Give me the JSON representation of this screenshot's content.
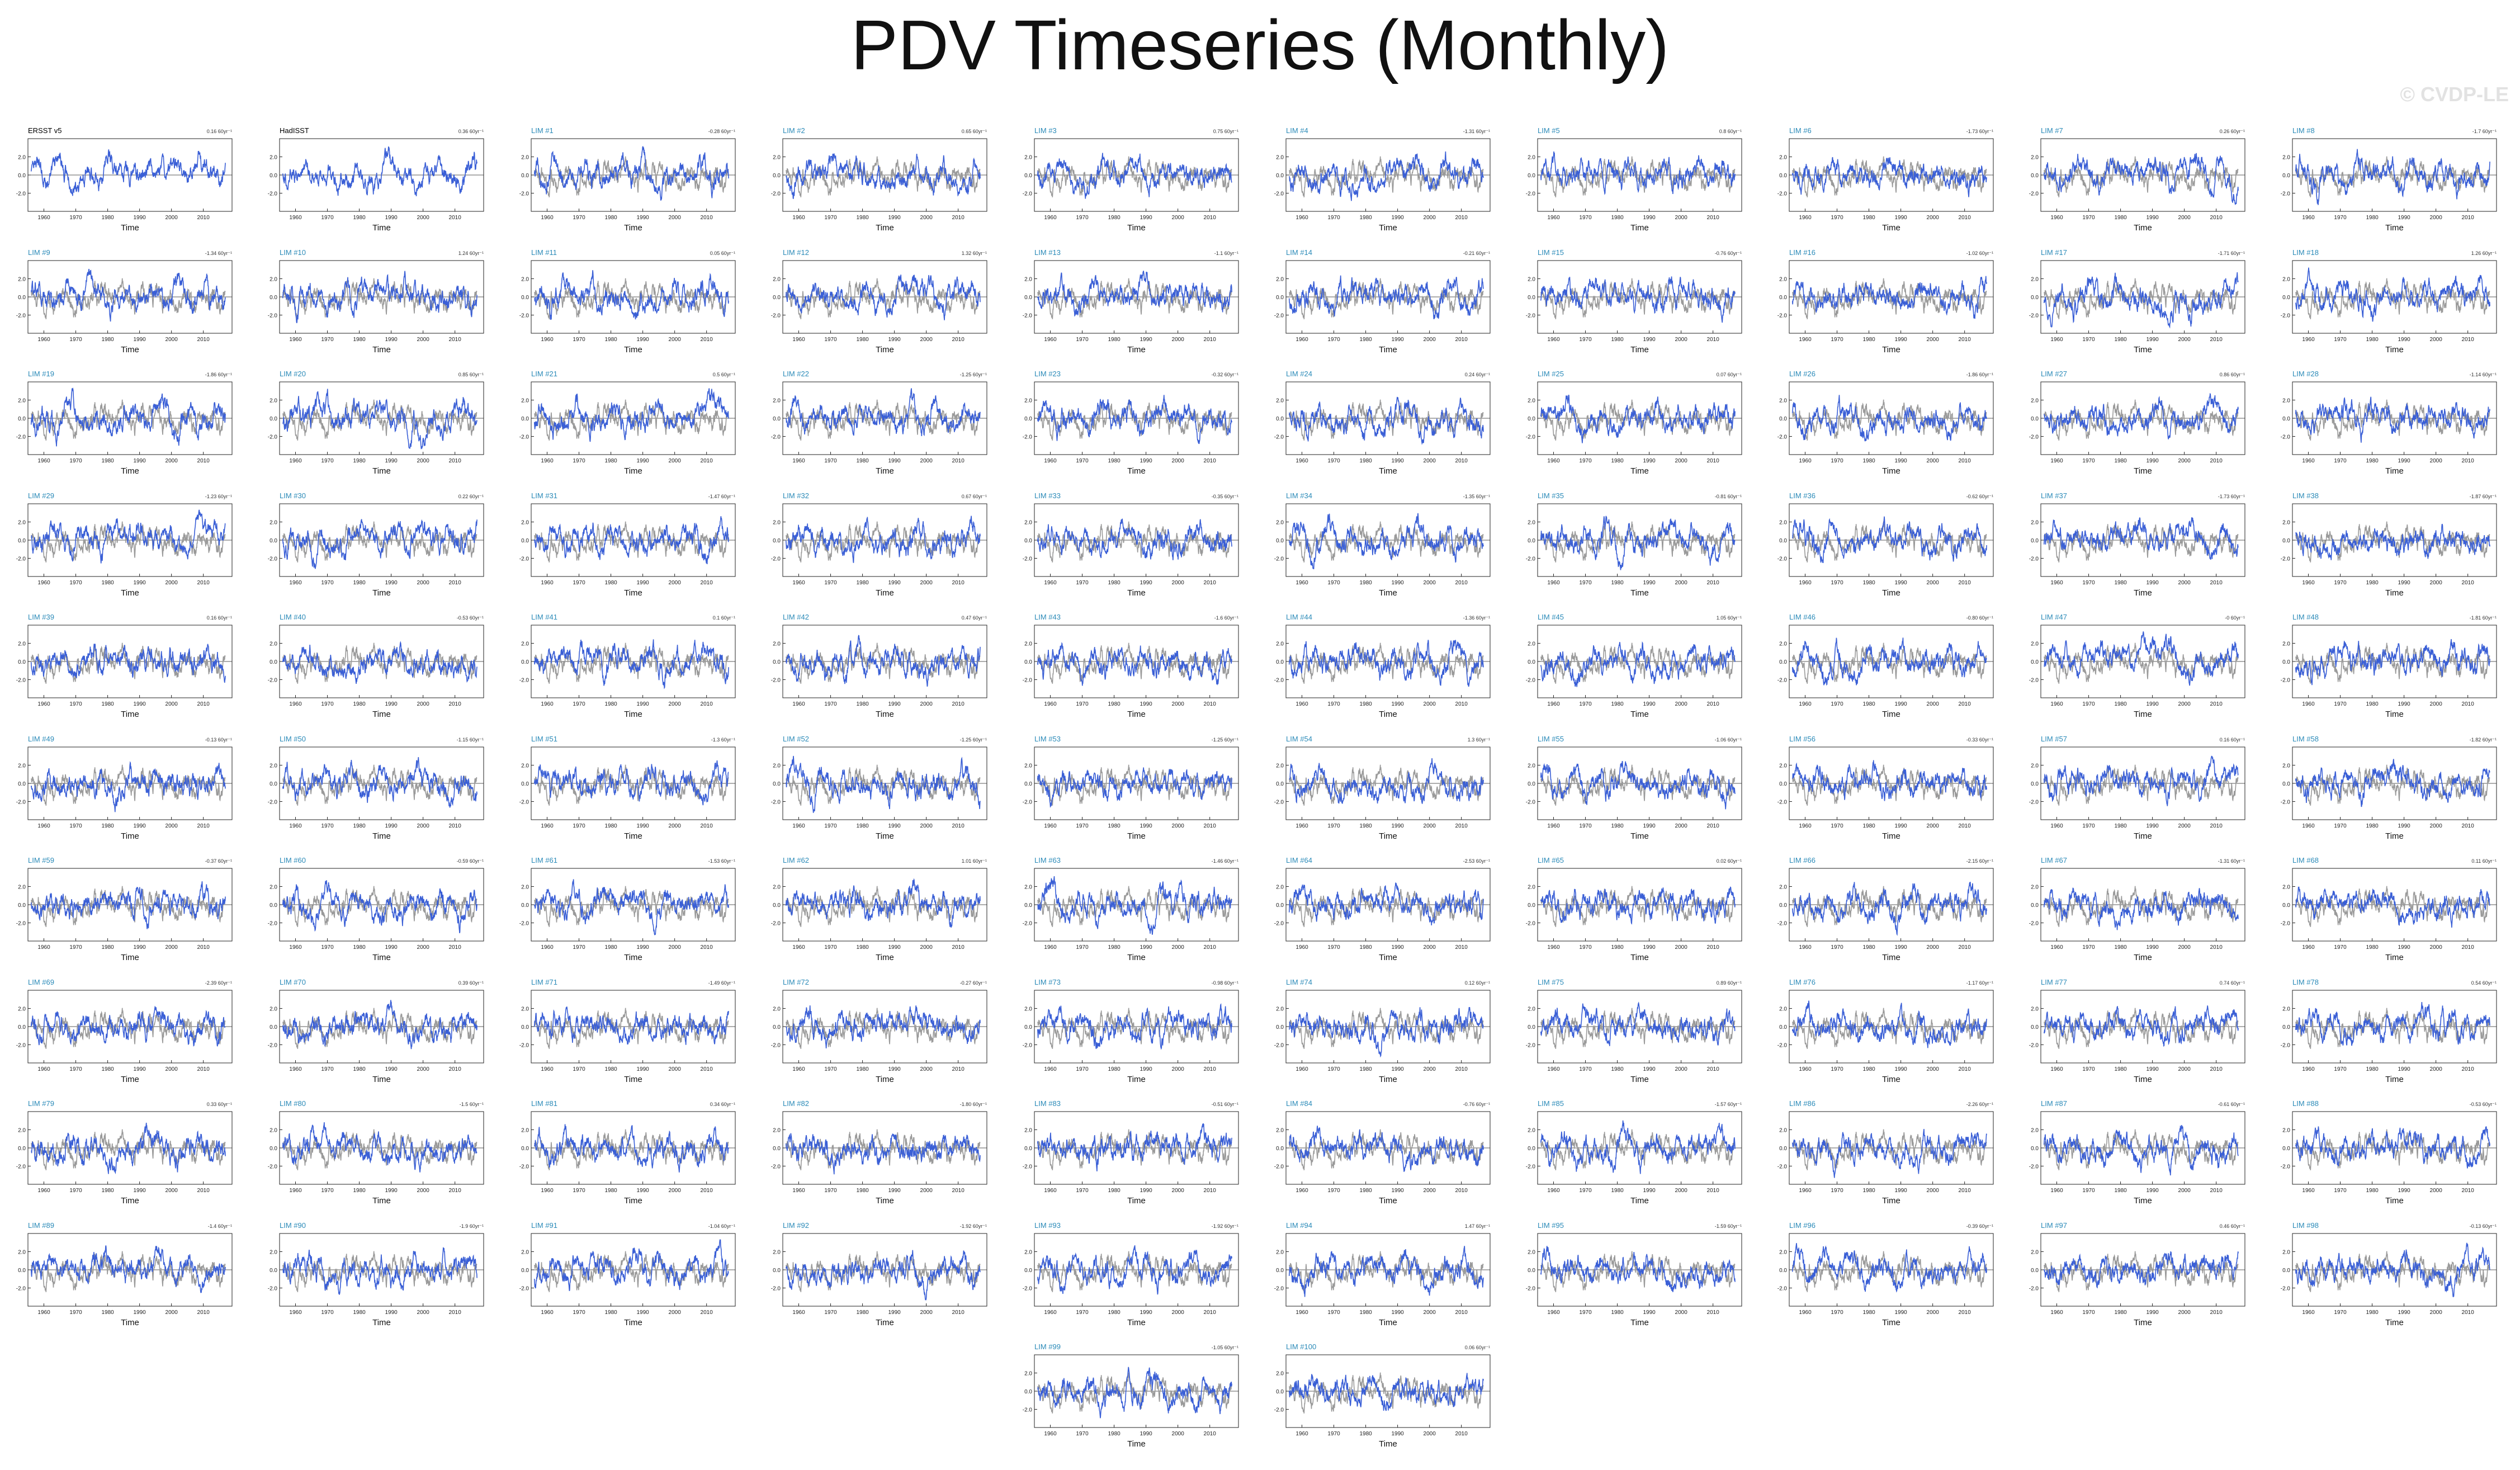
{
  "title": "PDV Timeseries (Monthly)",
  "watermark": "© CVDP-LE",
  "colors": {
    "observed": "#9a9a9a",
    "simulated": "#3a5fd6",
    "obs_title": "#000000",
    "member_title": "#2a8ab8"
  },
  "chart_data": {
    "type": "line",
    "panel_count": 102,
    "xlabel": "Time",
    "ylabel": "",
    "xlim": [
      1955,
      2019
    ],
    "xticks": [
      1960,
      1970,
      1980,
      1990,
      2000,
      2010
    ],
    "yticks": [
      "-2.0",
      "0.0",
      "2.0"
    ],
    "series_description": "gray = observed reference, blue = individual member",
    "panels": [
      {
        "title": "ERSST v5",
        "trend": "0.16 60yr⁻¹"
      },
      {
        "title": "HadISST",
        "trend": "0.36 60yr⁻¹"
      },
      {
        "title": "LIM #1",
        "trend": "-0.28 60yr⁻¹"
      },
      {
        "title": "LIM #2",
        "trend": "0.65 60yr⁻¹"
      },
      {
        "title": "LIM #3",
        "trend": "0.75 60yr⁻¹"
      },
      {
        "title": "LIM #4",
        "trend": "-1.31 60yr⁻¹"
      },
      {
        "title": "LIM #5",
        "trend": "0.8 60yr⁻¹"
      },
      {
        "title": "LIM #6",
        "trend": "-1.73 60yr⁻¹"
      },
      {
        "title": "LIM #7",
        "trend": "0.26 60yr⁻¹"
      },
      {
        "title": "LIM #8",
        "trend": "-1.7 60yr⁻¹"
      },
      {
        "title": "LIM #9",
        "trend": "-1.34 60yr⁻¹"
      },
      {
        "title": "LIM #10",
        "trend": "1.24 60yr⁻¹"
      },
      {
        "title": "LIM #11",
        "trend": "0.05 60yr⁻¹"
      },
      {
        "title": "LIM #12",
        "trend": "1.32 60yr⁻¹"
      },
      {
        "title": "LIM #13",
        "trend": "-1.1 60yr⁻¹"
      },
      {
        "title": "LIM #14",
        "trend": "-0.21 60yr⁻¹"
      },
      {
        "title": "LIM #15",
        "trend": "-0.76 60yr⁻¹"
      },
      {
        "title": "LIM #16",
        "trend": "-1.02 60yr⁻¹"
      },
      {
        "title": "LIM #17",
        "trend": "-1.71 60yr⁻¹"
      },
      {
        "title": "LIM #18",
        "trend": "1.26 60yr⁻¹"
      },
      {
        "title": "LIM #19",
        "trend": "-1.86 60yr⁻¹"
      },
      {
        "title": "LIM #20",
        "trend": "0.85 60yr⁻¹"
      },
      {
        "title": "LIM #21",
        "trend": "0.5 60yr⁻¹"
      },
      {
        "title": "LIM #22",
        "trend": "-1.25 60yr⁻¹"
      },
      {
        "title": "LIM #23",
        "trend": "-0.32 60yr⁻¹"
      },
      {
        "title": "LIM #24",
        "trend": "0.24 60yr⁻¹"
      },
      {
        "title": "LIM #25",
        "trend": "0.07 60yr⁻¹"
      },
      {
        "title": "LIM #26",
        "trend": "-1.86 60yr⁻¹"
      },
      {
        "title": "LIM #27",
        "trend": "0.86 60yr⁻¹"
      },
      {
        "title": "LIM #28",
        "trend": "-1.14 60yr⁻¹"
      },
      {
        "title": "LIM #29",
        "trend": "-1.23 60yr⁻¹"
      },
      {
        "title": "LIM #30",
        "trend": "0.22 60yr⁻¹"
      },
      {
        "title": "LIM #31",
        "trend": "-1.47 60yr⁻¹"
      },
      {
        "title": "LIM #32",
        "trend": "0.67 60yr⁻¹"
      },
      {
        "title": "LIM #33",
        "trend": "-0.35 60yr⁻¹"
      },
      {
        "title": "LIM #34",
        "trend": "-1.35 60yr⁻¹"
      },
      {
        "title": "LIM #35",
        "trend": "-0.81 60yr⁻¹"
      },
      {
        "title": "LIM #36",
        "trend": "-0.62 60yr⁻¹"
      },
      {
        "title": "LIM #37",
        "trend": "-1.73 60yr⁻¹"
      },
      {
        "title": "LIM #38",
        "trend": "-1.87 60yr⁻¹"
      },
      {
        "title": "LIM #39",
        "trend": "0.16 60yr⁻¹"
      },
      {
        "title": "LIM #40",
        "trend": "-0.53 60yr⁻¹"
      },
      {
        "title": "LIM #41",
        "trend": "0.1 60yr⁻¹"
      },
      {
        "title": "LIM #42",
        "trend": "0.47 60yr⁻¹"
      },
      {
        "title": "LIM #43",
        "trend": "-1.6 60yr⁻¹"
      },
      {
        "title": "LIM #44",
        "trend": "-1.36 60yr⁻¹"
      },
      {
        "title": "LIM #45",
        "trend": "1.05 60yr⁻¹"
      },
      {
        "title": "LIM #46",
        "trend": "-0.80 60yr⁻¹"
      },
      {
        "title": "LIM #47",
        "trend": "-0 60yr⁻¹"
      },
      {
        "title": "LIM #48",
        "trend": "-1.81 60yr⁻¹"
      },
      {
        "title": "LIM #49",
        "trend": "-0.13 60yr⁻¹"
      },
      {
        "title": "LIM #50",
        "trend": "-1.15 60yr⁻¹"
      },
      {
        "title": "LIM #51",
        "trend": "-1.3 60yr⁻¹"
      },
      {
        "title": "LIM #52",
        "trend": "-1.25 60yr⁻¹"
      },
      {
        "title": "LIM #53",
        "trend": "-1.25 60yr⁻¹"
      },
      {
        "title": "LIM #54",
        "trend": "1.3 60yr⁻¹"
      },
      {
        "title": "LIM #55",
        "trend": "-1.06 60yr⁻¹"
      },
      {
        "title": "LIM #56",
        "trend": "-0.33 60yr⁻¹"
      },
      {
        "title": "LIM #57",
        "trend": "0.16 60yr⁻¹"
      },
      {
        "title": "LIM #58",
        "trend": "-1.82 60yr⁻¹"
      },
      {
        "title": "LIM #59",
        "trend": "-0.37 60yr⁻¹"
      },
      {
        "title": "LIM #60",
        "trend": "-0.59 60yr⁻¹"
      },
      {
        "title": "LIM #61",
        "trend": "-1.53 60yr⁻¹"
      },
      {
        "title": "LIM #62",
        "trend": "1.01 60yr⁻¹"
      },
      {
        "title": "LIM #63",
        "trend": "-1.46 60yr⁻¹"
      },
      {
        "title": "LIM #64",
        "trend": "-2.53 60yr⁻¹"
      },
      {
        "title": "LIM #65",
        "trend": "0.02 60yr⁻¹"
      },
      {
        "title": "LIM #66",
        "trend": "-2.15 60yr⁻¹"
      },
      {
        "title": "LIM #67",
        "trend": "-1.31 60yr⁻¹"
      },
      {
        "title": "LIM #68",
        "trend": "0.11 60yr⁻¹"
      },
      {
        "title": "LIM #69",
        "trend": "-2.39 60yr⁻¹"
      },
      {
        "title": "LIM #70",
        "trend": "0.39 60yr⁻¹"
      },
      {
        "title": "LIM #71",
        "trend": "-1.49 60yr⁻¹"
      },
      {
        "title": "LIM #72",
        "trend": "-0.27 60yr⁻¹"
      },
      {
        "title": "LIM #73",
        "trend": "-0.98 60yr⁻¹"
      },
      {
        "title": "LIM #74",
        "trend": "0.12 60yr⁻¹"
      },
      {
        "title": "LIM #75",
        "trend": "0.89 60yr⁻¹"
      },
      {
        "title": "LIM #76",
        "trend": "-1.17 60yr⁻¹"
      },
      {
        "title": "LIM #77",
        "trend": "0.74 60yr⁻¹"
      },
      {
        "title": "LIM #78",
        "trend": "0.54 60yr⁻¹"
      },
      {
        "title": "LIM #79",
        "trend": "0.33 60yr⁻¹"
      },
      {
        "title": "LIM #80",
        "trend": "-1.5 60yr⁻¹"
      },
      {
        "title": "LIM #81",
        "trend": "0.34 60yr⁻¹"
      },
      {
        "title": "LIM #82",
        "trend": "-1.80 60yr⁻¹"
      },
      {
        "title": "LIM #83",
        "trend": "-0.51 60yr⁻¹"
      },
      {
        "title": "LIM #84",
        "trend": "-0.76 60yr⁻¹"
      },
      {
        "title": "LIM #85",
        "trend": "-1.57 60yr⁻¹"
      },
      {
        "title": "LIM #86",
        "trend": "-2.26 60yr⁻¹"
      },
      {
        "title": "LIM #87",
        "trend": "-0.61 60yr⁻¹"
      },
      {
        "title": "LIM #88",
        "trend": "-0.53 60yr⁻¹"
      },
      {
        "title": "LIM #89",
        "trend": "-1.4 60yr⁻¹"
      },
      {
        "title": "LIM #90",
        "trend": "-1.9 60yr⁻¹"
      },
      {
        "title": "LIM #91",
        "trend": "-1.04 60yr⁻¹"
      },
      {
        "title": "LIM #92",
        "trend": "-1.92 60yr⁻¹"
      },
      {
        "title": "LIM #93",
        "trend": "-1.92 60yr⁻¹"
      },
      {
        "title": "LIM #94",
        "trend": "1.47 60yr⁻¹"
      },
      {
        "title": "LIM #95",
        "trend": "-1.59 60yr⁻¹"
      },
      {
        "title": "LIM #96",
        "trend": "-0.39 60yr⁻¹"
      },
      {
        "title": "LIM #97",
        "trend": "0.46 60yr⁻¹"
      },
      {
        "title": "LIM #98",
        "trend": "-0.13 60yr⁻¹"
      },
      {
        "title": "LIM #99",
        "trend": "-1.05 60yr⁻¹"
      },
      {
        "title": "LIM #100",
        "trend": "0.06 60yr⁻¹"
      }
    ]
  }
}
